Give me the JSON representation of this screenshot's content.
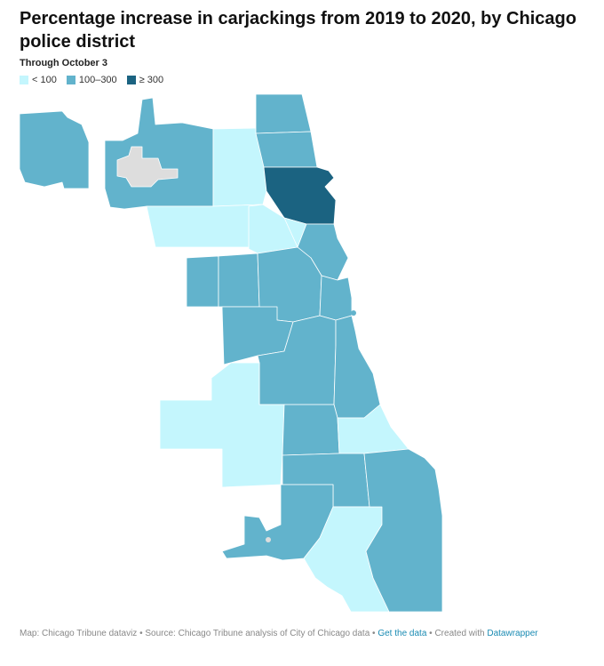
{
  "title": "Percentage increase in carjackings from 2019 to 2020, by Chicago police district",
  "subtitle": "Through October 3",
  "legend": [
    {
      "label": "< 100",
      "color": "#c4f6fd"
    },
    {
      "label": "100–300",
      "color": "#62b3cc"
    },
    {
      "label": "≥ 300",
      "color": "#1b6381"
    }
  ],
  "colors": {
    "low": "#c4f6fd",
    "mid": "#62b3cc",
    "high": "#1b6381",
    "no_data": "#dddddd"
  },
  "footer": {
    "map_credit": "Map: Chicago Tribune dataviz",
    "sep1": " • ",
    "source": "Source: Chicago Tribune analysis of City of Chicago data",
    "sep2": " • ",
    "get_data": "Get the data",
    "sep3": " • ",
    "created_with": "Created with ",
    "tool": "Datawrapper"
  },
  "map_data": {
    "type": "choropleth",
    "regions": [
      {
        "id": "district-16-ohare",
        "category": "mid"
      },
      {
        "id": "district-16-main",
        "category": "mid"
      },
      {
        "id": "district-17",
        "category": "low"
      },
      {
        "id": "district-24",
        "category": "mid"
      },
      {
        "id": "district-20",
        "category": "mid"
      },
      {
        "id": "district-19",
        "category": "high"
      },
      {
        "id": "district-25",
        "category": "low"
      },
      {
        "id": "district-14",
        "category": "low"
      },
      {
        "id": "district-18",
        "category": "mid"
      },
      {
        "id": "district-15",
        "category": "mid"
      },
      {
        "id": "district-11",
        "category": "mid"
      },
      {
        "id": "district-12",
        "category": "mid"
      },
      {
        "id": "district-10",
        "category": "mid"
      },
      {
        "id": "district-1",
        "category": "mid"
      },
      {
        "id": "district-9",
        "category": "mid"
      },
      {
        "id": "district-2",
        "category": "mid"
      },
      {
        "id": "district-8",
        "category": "low"
      },
      {
        "id": "district-7",
        "category": "mid"
      },
      {
        "id": "district-3",
        "category": "low"
      },
      {
        "id": "district-6",
        "category": "mid"
      },
      {
        "id": "district-22",
        "category": "mid"
      },
      {
        "id": "district-5",
        "category": "low"
      },
      {
        "id": "district-4",
        "category": "mid"
      },
      {
        "id": "no-data-area",
        "category": "no_data"
      }
    ]
  }
}
